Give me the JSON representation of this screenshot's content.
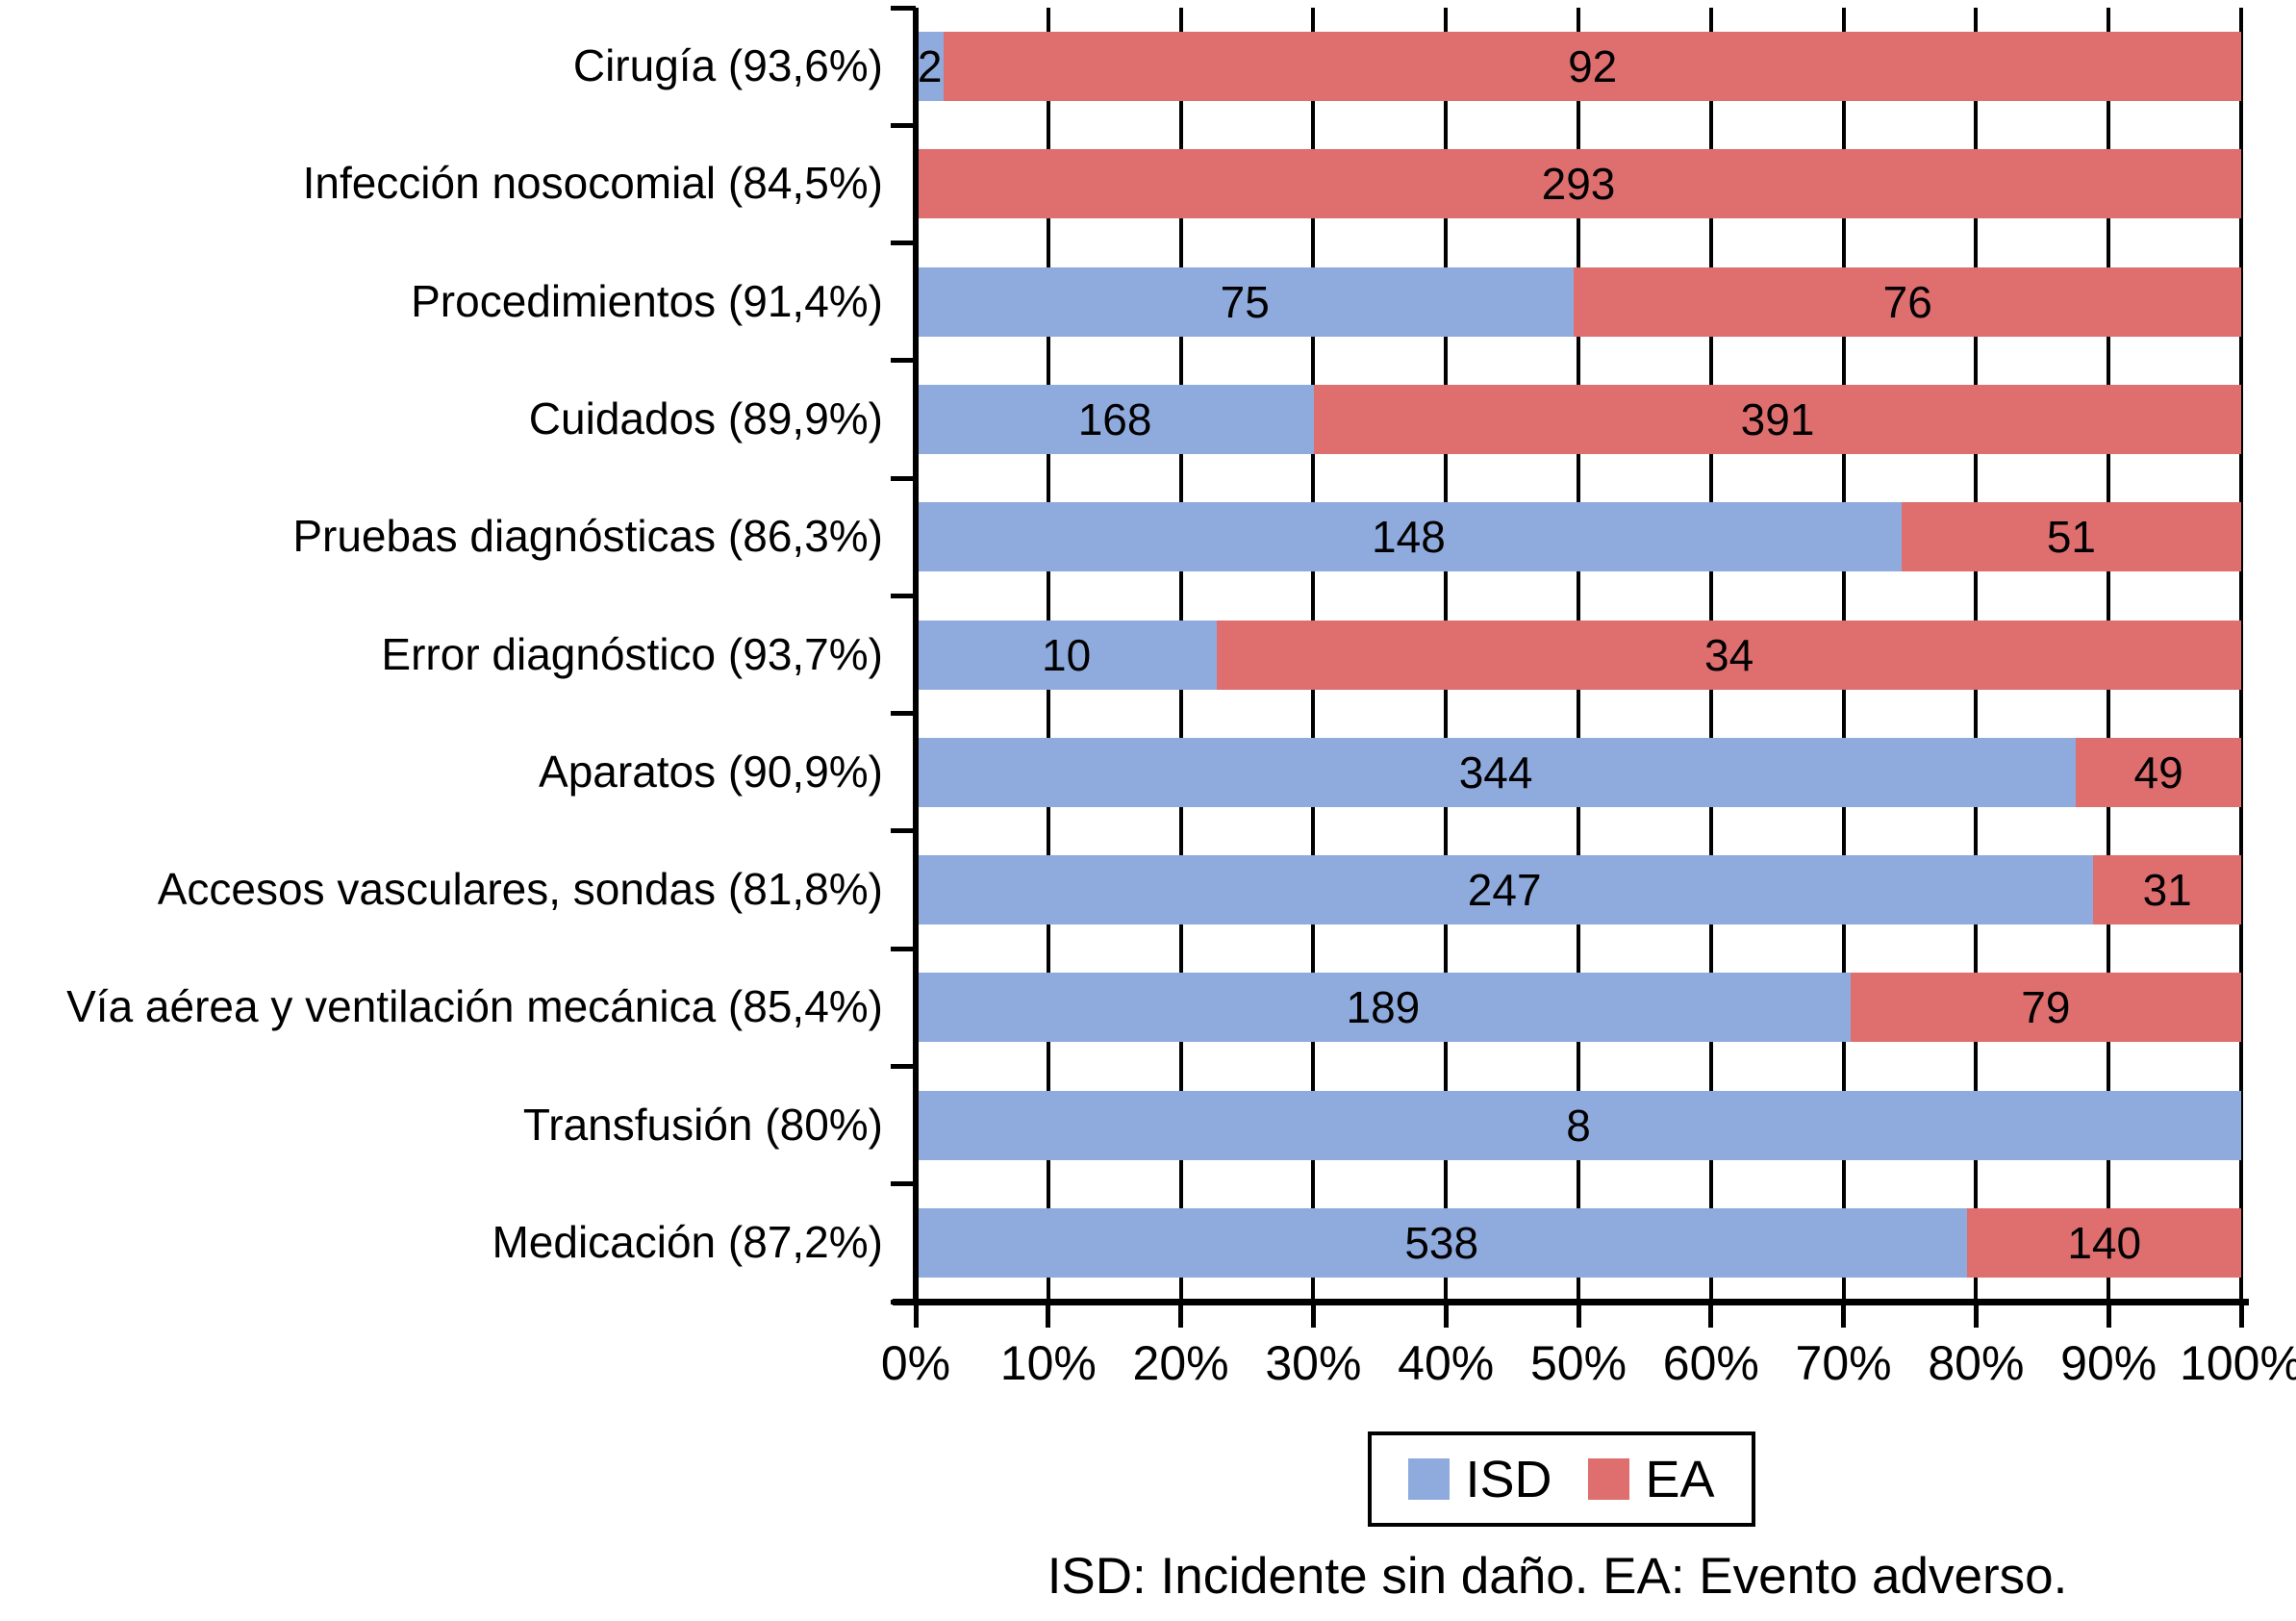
{
  "chart_data": {
    "type": "bar",
    "variant": "horizontal-stacked-100percent",
    "title": "",
    "xlabel": "",
    "ylabel": "",
    "x_axis": {
      "min": 0,
      "max": 100,
      "tick_step": 10,
      "tick_labels": [
        "0%",
        "10%",
        "20%",
        "30%",
        "40%",
        "50%",
        "60%",
        "70%",
        "80%",
        "90%",
        "100%"
      ]
    },
    "grid": "vertical-lines-on",
    "categories": [
      "Cirugía (93,6%)",
      "Infección nosocomial (84,5%)",
      "Procedimientos (91,4%)",
      "Cuidados (89,9%)",
      "Pruebas diagnósticas (86,3%)",
      "Error diagnóstico (93,7%)",
      "Aparatos (90,9%)",
      "Accesos vasculares, sondas (81,8%)",
      "Vía aérea y ventilación mecánica (85,4%)",
      "Transfusión (80%)",
      "Medicación (87,2%)"
    ],
    "series": [
      {
        "name": "ISD",
        "color": "#8FABDE",
        "values": [
          2,
          null,
          75,
          168,
          148,
          10,
          344,
          247,
          189,
          8,
          538
        ]
      },
      {
        "name": "EA",
        "color": "#DF6E6E",
        "values": [
          92,
          293,
          76,
          391,
          51,
          34,
          49,
          31,
          79,
          null,
          140
        ]
      }
    ],
    "legend": {
      "position": "bottom-center",
      "entries": [
        {
          "label": "ISD",
          "color": "#8FABDE"
        },
        {
          "label": "EA",
          "color": "#DF6E6E"
        }
      ]
    },
    "footnote": "ISD: Incidente sin daño. EA: Evento adverso."
  },
  "colors": {
    "isd_blue": "#8FABDE",
    "ea_red": "#DF6E6E",
    "axis_black": "#000000",
    "background": "#ffffff"
  }
}
